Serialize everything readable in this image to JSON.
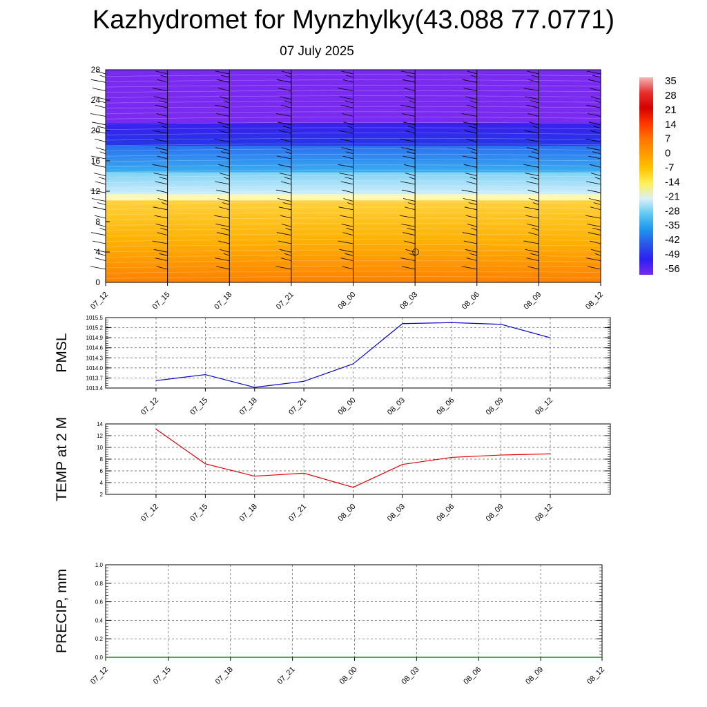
{
  "title": "Kazhydromet for Mynzhylky(43.088 77.0771)",
  "subtitle": "07 July 2025",
  "chart_data": [
    {
      "type": "heatmap",
      "name": "cross-section",
      "x_ticks": [
        "07_12",
        "07_15",
        "07_18",
        "07_21",
        "08_00",
        "08_03",
        "08_06",
        "08_09",
        "08_12"
      ],
      "y_ticks": [
        "0",
        "4",
        "8",
        "12",
        "16",
        "20",
        "24",
        "28"
      ],
      "ylim": [
        0,
        28
      ],
      "colorbar": {
        "labels": [
          "35",
          "28",
          "21",
          "14",
          "7",
          "0",
          "-7",
          "-14",
          "-21",
          "-28",
          "-35",
          "-42",
          "-49",
          "-56"
        ],
        "colors": [
          "#f3b6b6",
          "#e83030",
          "#d40000",
          "#ff3500",
          "#ff7000",
          "#ff9a00",
          "#ffc400",
          "#fff05a",
          "#d8f0fa",
          "#5fc8f2",
          "#1e96ef",
          "#2a55e8",
          "#2b1ef0",
          "#7a2bf0"
        ]
      },
      "bands": [
        {
          "from": 0,
          "to": 10.8,
          "colors": [
            "#ff8000",
            "#ffb000",
            "#ffd23c"
          ]
        },
        {
          "from": 10.8,
          "to": 11.6,
          "colors": [
            "#fff9b0"
          ]
        },
        {
          "from": 11.6,
          "to": 14.5,
          "colors": [
            "#cfeefb",
            "#7fd2f4"
          ]
        },
        {
          "from": 14.5,
          "to": 18.0,
          "colors": [
            "#3aaeef",
            "#2a6ff0"
          ]
        },
        {
          "from": 18.0,
          "to": 21.0,
          "colors": [
            "#2438e6",
            "#3a1ff0"
          ]
        },
        {
          "from": 21.0,
          "to": 28,
          "colors": [
            "#7a2bf0",
            "#7a2bf0"
          ]
        }
      ]
    },
    {
      "type": "line",
      "name": "pmsl",
      "ylabel": "PMSL",
      "categories": [
        "07_12",
        "07_15",
        "07_18",
        "07_21",
        "08_00",
        "08_03",
        "08_06",
        "08_09",
        "08_12"
      ],
      "values": [
        1013.62,
        1013.8,
        1013.42,
        1013.6,
        1014.12,
        1015.32,
        1015.35,
        1015.3,
        1014.9
      ],
      "ylim": [
        1013.4,
        1015.5
      ],
      "y_ticks": [
        "1015.5",
        "1015.2",
        "1014.9",
        "1014.6",
        "1014.3",
        "1014.0",
        "1013.7",
        "1013.4"
      ],
      "color": "#0000cc"
    },
    {
      "type": "line",
      "name": "temp",
      "ylabel": "TEMP at 2 M",
      "categories": [
        "07_12",
        "07_15",
        "07_18",
        "07_21",
        "08_00",
        "08_03",
        "08_06",
        "08_09",
        "08_12"
      ],
      "values": [
        13.1,
        7.2,
        5.1,
        5.6,
        3.2,
        7.1,
        8.3,
        8.7,
        8.9
      ],
      "ylim": [
        2,
        14
      ],
      "y_ticks": [
        "14",
        "12",
        "10",
        "8",
        "6",
        "4",
        "2"
      ],
      "color": "#e00000"
    },
    {
      "type": "line",
      "name": "precip",
      "ylabel": "PRECIP, mm",
      "categories": [
        "07_12",
        "07_15",
        "07_18",
        "07_21",
        "08_00",
        "08_03",
        "08_06",
        "08_09",
        "08_12"
      ],
      "values": [
        0,
        0,
        0,
        0,
        0,
        0,
        0,
        0,
        0
      ],
      "ylim": [
        0,
        1
      ],
      "y_ticks": [
        "1.0",
        "0.8",
        "0.6",
        "0.4",
        "0.2",
        "0.0"
      ],
      "color": "#006400"
    }
  ]
}
